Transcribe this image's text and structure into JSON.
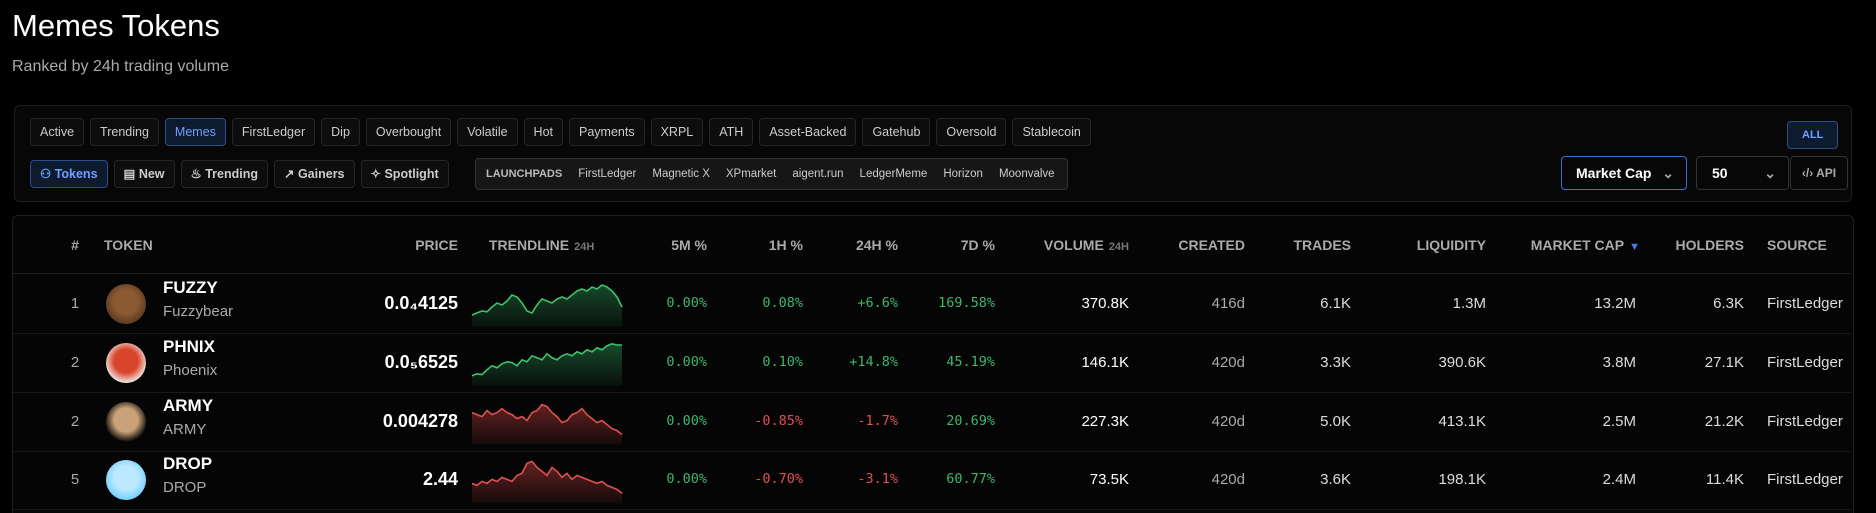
{
  "header": {
    "title": "Memes Tokens",
    "subtitle": "Ranked by 24h trading volume"
  },
  "filters": {
    "tags": [
      "Active",
      "Trending",
      "Memes",
      "FirstLedger",
      "Dip",
      "Overbought",
      "Volatile",
      "Hot",
      "Payments",
      "XRPL",
      "ATH",
      "Asset-Backed",
      "Gatehub",
      "Oversold",
      "Stablecoin"
    ],
    "all": "ALL",
    "views": [
      "Tokens",
      "New",
      "Trending",
      "Gainers",
      "Spotlight"
    ],
    "launchpads_label": "LAUNCHPADS",
    "launchpads": [
      "FirstLedger",
      "Magnetic X",
      "XPmarket",
      "aigent.run",
      "LedgerMeme",
      "Horizon",
      "Moonvalve"
    ],
    "sort": "Market Cap",
    "limit": "50",
    "api": "API"
  },
  "table": {
    "columns": [
      {
        "label": "#"
      },
      {
        "label": "TOKEN"
      },
      {
        "label": "PRICE"
      },
      {
        "label": "TRENDLINE",
        "sub": "24H"
      },
      {
        "label": "5M %"
      },
      {
        "label": "1H %"
      },
      {
        "label": "24H %"
      },
      {
        "label": "7D %"
      },
      {
        "label": "VOLUME",
        "sub": "24H"
      },
      {
        "label": "CREATED"
      },
      {
        "label": "TRADES"
      },
      {
        "label": "LIQUIDITY"
      },
      {
        "label": "MARKET CAP",
        "sub": "▼"
      },
      {
        "label": "HOLDERS"
      },
      {
        "label": "SOURCE"
      }
    ],
    "rows": [
      {
        "rank": "1",
        "symbol": "FUZZY",
        "name": "Fuzzybear",
        "price": "0.0₄4125",
        "m5": "0.00%",
        "h1": "0.08%",
        "h24": "+6.6%",
        "d7": "169.58%",
        "volume": "370.8K",
        "created": "416d",
        "trades": "6.1K",
        "liquidity": "1.3M",
        "market_cap": "13.2M",
        "holders": "6.3K",
        "source": "FirstLedger"
      },
      {
        "rank": "2",
        "symbol": "PHNIX",
        "name": "Phoenix",
        "price": "0.0₅6525",
        "m5": "0.00%",
        "h1": "0.10%",
        "h24": "+14.8%",
        "d7": "45.19%",
        "volume": "146.1K",
        "created": "420d",
        "trades": "3.3K",
        "liquidity": "390.6K",
        "market_cap": "3.8M",
        "holders": "27.1K",
        "source": "FirstLedger"
      },
      {
        "rank": "2",
        "symbol": "ARMY",
        "name": "ARMY",
        "price": "0.004278",
        "m5": "0.00%",
        "h1": "-0.85%",
        "h24": "-1.7%",
        "d7": "20.69%",
        "volume": "227.3K",
        "created": "420d",
        "trades": "5.0K",
        "liquidity": "413.1K",
        "market_cap": "2.5M",
        "holders": "21.2K",
        "source": "FirstLedger"
      },
      {
        "rank": "5",
        "symbol": "DROP",
        "name": "DROP",
        "price": "2.44",
        "m5": "0.00%",
        "h1": "-0.70%",
        "h24": "-3.1%",
        "d7": "60.77%",
        "volume": "73.5K",
        "created": "420d",
        "trades": "3.6K",
        "liquidity": "198.1K",
        "market_cap": "2.4M",
        "holders": "11.4K",
        "source": "FirstLedger"
      }
    ]
  }
}
